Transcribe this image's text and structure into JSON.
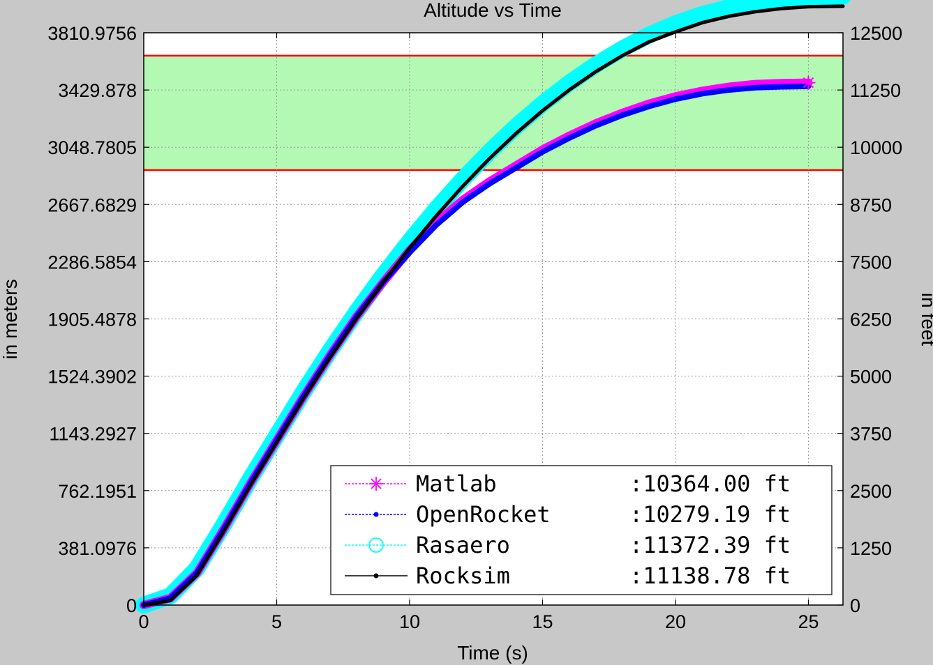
{
  "chart_data": {
    "type": "line",
    "title": "Altitude vs Time",
    "xlabel": "Time (s)",
    "ylabel_left": "in meters",
    "ylabel_right": "in feet",
    "xlim": [
      0,
      26.3
    ],
    "ylim_ft": [
      0,
      12500
    ],
    "xticks": [
      "0",
      "5",
      "10",
      "15",
      "20",
      "25"
    ],
    "yticks_left": [
      "0",
      "381.0976",
      "762.1951",
      "1143.2927",
      "1524.3902",
      "1905.4878",
      "2286.5854",
      "2667.6829",
      "3048.7805",
      "3429.878",
      "3810.9756"
    ],
    "yticks_right": [
      "0",
      "1250",
      "2500",
      "3750",
      "5000",
      "6250",
      "7500",
      "8750",
      "10000",
      "11250",
      "12500"
    ],
    "grid": true,
    "target_band_ft": [
      9500,
      12000
    ],
    "band_color": "#b3f9b3",
    "band_line_color": "#ff0000",
    "series": [
      {
        "name": "Matlab",
        "value_label": ":10364.00 ft",
        "color": "#ff00ff",
        "marker": "star",
        "x": [
          0,
          1,
          2,
          3,
          4,
          5,
          6,
          7,
          8,
          9,
          10,
          11,
          12,
          13,
          14,
          15,
          16,
          17,
          18,
          19,
          20,
          21,
          22,
          23,
          24,
          25
        ],
        "y": [
          0,
          150,
          700,
          1650,
          2650,
          3600,
          4550,
          5450,
          6300,
          7050,
          7750,
          8350,
          8850,
          9250,
          9600,
          9950,
          10250,
          10520,
          10750,
          10950,
          11110,
          11230,
          11320,
          11380,
          11400,
          11410
        ]
      },
      {
        "name": "OpenRocket",
        "value_label": ":10279.19 ft",
        "color": "#0000ff",
        "marker": "dot",
        "x": [
          0,
          1,
          2,
          3,
          4,
          5,
          6,
          7,
          8,
          9,
          10,
          11,
          12,
          13,
          14,
          15,
          16,
          17,
          18,
          19,
          20,
          21,
          22,
          23,
          24,
          25
        ],
        "y": [
          0,
          150,
          700,
          1650,
          2650,
          3600,
          4550,
          5450,
          6300,
          7050,
          7700,
          8300,
          8800,
          9200,
          9550,
          9900,
          10200,
          10470,
          10700,
          10890,
          11050,
          11170,
          11250,
          11300,
          11320,
          11330
        ]
      },
      {
        "name": "Rasaero",
        "value_label": ":11372.39 ft",
        "color": "#00ffff",
        "marker": "circle",
        "x": [
          0,
          1,
          2,
          3,
          4,
          5,
          6,
          7,
          8,
          9,
          10,
          11,
          12,
          13,
          14,
          15,
          16,
          17,
          18,
          19,
          20,
          21,
          22,
          23,
          24,
          25,
          26.3
        ],
        "y": [
          0,
          200,
          800,
          1750,
          2750,
          3700,
          4650,
          5550,
          6400,
          7200,
          7950,
          8650,
          9300,
          9900,
          10450,
          10950,
          11400,
          11800,
          12150,
          12450,
          12700,
          12900,
          13050,
          13150,
          13230,
          13280,
          13300
        ]
      },
      {
        "name": "Rocksim",
        "value_label": ":11138.78 ft",
        "color": "#000000",
        "marker": "dot",
        "x": [
          0,
          1,
          2,
          3,
          4,
          5,
          6,
          7,
          8,
          9,
          10,
          11,
          12,
          13,
          14,
          15,
          16,
          17,
          18,
          19,
          20,
          21,
          22,
          23,
          24,
          25,
          26.3
        ],
        "y": [
          0,
          100,
          650,
          1600,
          2600,
          3550,
          4500,
          5400,
          6250,
          7050,
          7800,
          8500,
          9150,
          9750,
          10300,
          10800,
          11250,
          11650,
          12000,
          12300,
          12520,
          12720,
          12860,
          12960,
          13030,
          13070,
          13080
        ]
      }
    ]
  }
}
